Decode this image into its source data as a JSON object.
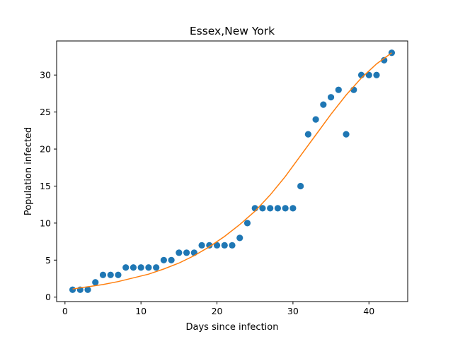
{
  "chart_data": {
    "type": "scatter",
    "title": "Essex,New York",
    "xlabel": "Days since infection",
    "ylabel": "Population infected",
    "xlim": [
      -1.1,
      45.1
    ],
    "ylim": [
      -0.6,
      34.6
    ],
    "x_ticks": [
      0,
      10,
      20,
      30,
      40
    ],
    "y_ticks": [
      0,
      5,
      10,
      15,
      20,
      25,
      30
    ],
    "grid": false,
    "series": [
      {
        "kind": "scatter",
        "color": "#1f77b4",
        "x": [
          1,
          2,
          3,
          4,
          5,
          6,
          7,
          8,
          9,
          10,
          11,
          12,
          13,
          14,
          15,
          16,
          17,
          18,
          19,
          20,
          21,
          22,
          23,
          24,
          25,
          26,
          27,
          28,
          29,
          30,
          31,
          32,
          33,
          34,
          35,
          36,
          37,
          38,
          39,
          40,
          41,
          42,
          43
        ],
        "y": [
          1,
          1,
          1,
          2,
          3,
          3,
          3,
          4,
          4,
          4,
          4,
          4,
          5,
          5,
          6,
          6,
          6,
          7,
          7,
          7,
          7,
          7,
          8,
          10,
          12,
          12,
          12,
          12,
          12,
          12,
          15,
          22,
          24,
          26,
          27,
          28,
          22,
          28,
          30,
          30,
          30,
          32,
          33
        ]
      },
      {
        "kind": "line",
        "color": "#ff7f0e",
        "x": [
          1,
          3,
          5,
          7,
          9,
          11,
          13,
          15,
          17,
          19,
          21,
          23,
          25,
          27,
          29,
          31,
          33,
          35,
          37,
          39,
          41,
          43
        ],
        "y": [
          1.1,
          1.4,
          1.7,
          2.1,
          2.6,
          3.1,
          3.8,
          4.6,
          5.6,
          6.8,
          8.2,
          9.8,
          11.6,
          13.8,
          16.3,
          19.1,
          21.9,
          24.7,
          27.3,
          29.6,
          31.5,
          33.0
        ]
      }
    ]
  }
}
